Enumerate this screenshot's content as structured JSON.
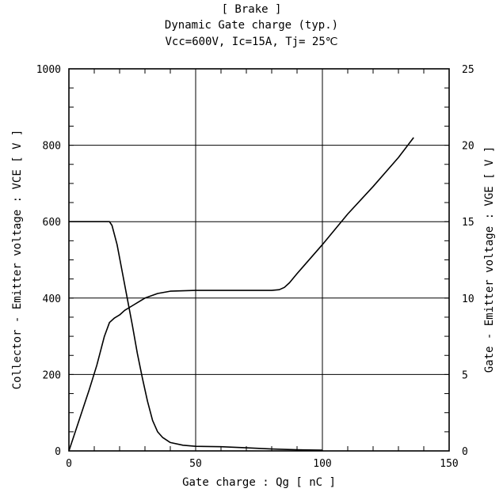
{
  "chart_data": {
    "type": "line",
    "title_lines": [
      "[ Brake ]",
      "Dynamic Gate charge  (typ.)",
      "Vcc=600V, Ic=15A, Tj= 25℃"
    ],
    "xlabel": "Gate charge  :  Qg  [ nC ]",
    "ylabel": "Collector - Emitter voltage  :  VCE  [ V ]",
    "y2label": "Gate - Emitter voltage  :  VGE  [ V ]",
    "xlim": [
      0,
      150
    ],
    "ylim": [
      0,
      1000
    ],
    "y2lim": [
      0,
      25
    ],
    "x_ticks": [
      "0",
      "50",
      "100",
      "150"
    ],
    "y_ticks": [
      "0",
      "200",
      "400",
      "600",
      "800",
      "1000"
    ],
    "y2_ticks": [
      "0",
      "5",
      "10",
      "15",
      "20",
      "25"
    ],
    "grid": true,
    "series": [
      {
        "axis": "left",
        "x": [
          0,
          16,
          17,
          19,
          21,
          23,
          25,
          27,
          29,
          31,
          33,
          35,
          37,
          40,
          45,
          50,
          60,
          70,
          80,
          90,
          100
        ],
        "y": [
          600,
          600,
          590,
          540,
          470,
          400,
          330,
          255,
          190,
          130,
          80,
          50,
          35,
          22,
          15,
          12,
          11,
          8,
          5,
          3,
          2
        ]
      },
      {
        "axis": "right",
        "x": [
          0,
          2,
          5,
          8,
          11,
          14,
          16,
          18,
          20,
          22,
          25,
          30,
          35,
          40,
          50,
          60,
          70,
          80,
          83,
          85,
          87,
          90,
          100,
          110,
          120,
          130,
          136
        ],
        "y": [
          0,
          1,
          2.5,
          4,
          5.6,
          7.5,
          8.4,
          8.7,
          8.9,
          9.2,
          9.5,
          10.0,
          10.3,
          10.45,
          10.5,
          10.5,
          10.5,
          10.5,
          10.55,
          10.7,
          11.0,
          11.6,
          13.5,
          15.5,
          17.3,
          19.2,
          20.5
        ]
      },
      {
        "axis": "left",
        "x": [
          100,
          100
        ],
        "y": [
          0,
          2
        ]
      }
    ]
  }
}
